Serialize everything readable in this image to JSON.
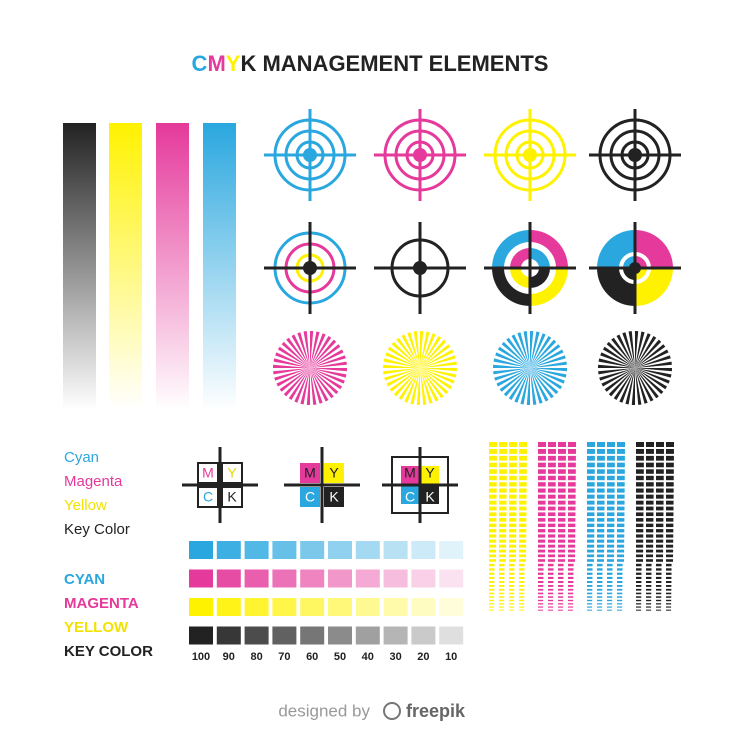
{
  "header": {
    "title": [
      "C",
      "M",
      "Y",
      "K MANAGEMENT ELEMENTS"
    ]
  },
  "legend_names": [
    "Cyan",
    "Magenta",
    "Yellow",
    "Key Color"
  ],
  "legend_caps": [
    "CYAN",
    "MAGENTA",
    "YELLOW",
    "KEY COLOR"
  ],
  "marks": [
    {
      "cells": [
        "M",
        "Y",
        "C",
        "K"
      ]
    },
    {
      "cells": [
        "M",
        "Y",
        "C",
        "K"
      ]
    },
    {
      "cells": [
        "M",
        "Y",
        "C",
        "K"
      ]
    }
  ],
  "scale_labels": [
    100,
    90,
    80,
    70,
    60,
    50,
    40,
    30,
    20,
    10
  ],
  "footer": {
    "prefix": "designed by",
    "brand": "freepik"
  }
}
